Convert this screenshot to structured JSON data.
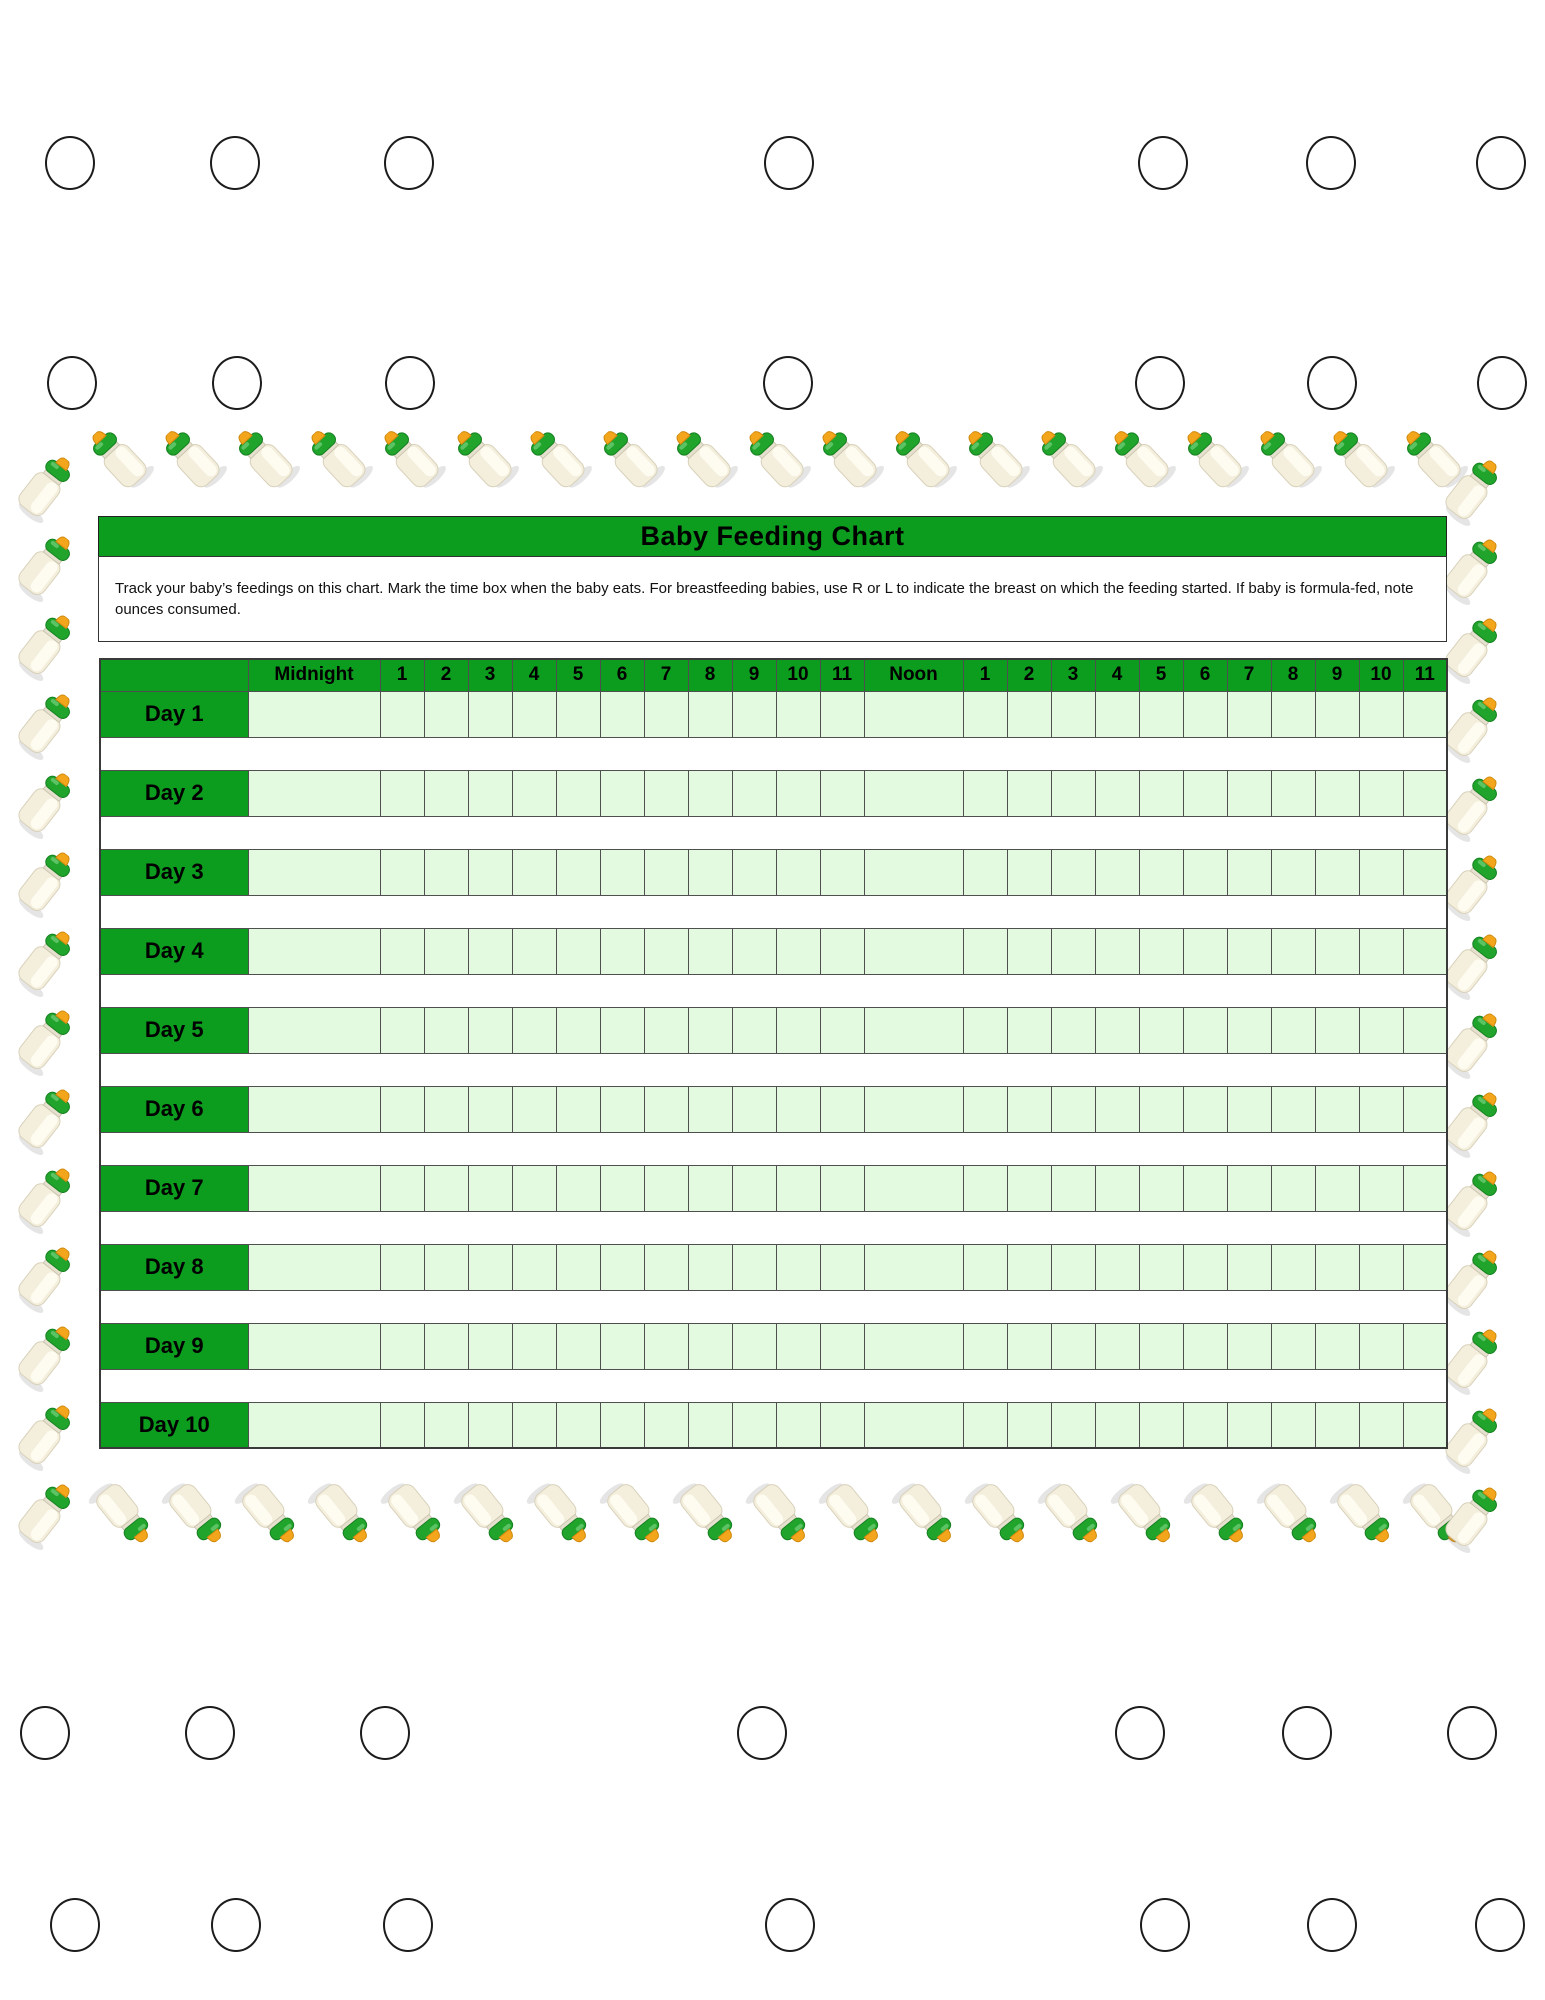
{
  "page": {
    "title": "Baby Feeding Chart",
    "instructions": "Track your baby’s feedings on this chart. Mark the time box when the baby eats. For breastfeeding babies, use R or L to indicate the breast on which the feeding started. If baby is formula-fed, note ounces consumed."
  },
  "table": {
    "corner_label": "",
    "time_headers": [
      "Midnight",
      "1",
      "2",
      "3",
      "4",
      "5",
      "6",
      "7",
      "8",
      "9",
      "10",
      "11",
      "Noon",
      "1",
      "2",
      "3",
      "4",
      "5",
      "6",
      "7",
      "8",
      "9",
      "10",
      "11"
    ],
    "days": [
      "Day 1",
      "Day 2",
      "Day 3",
      "Day 4",
      "Day 5",
      "Day 6",
      "Day 7",
      "Day 8",
      "Day 9",
      "Day 10"
    ],
    "cell_value": ""
  },
  "decor": {
    "border_icon": "baby-bottle-icon",
    "hole_icon": "punch-hole"
  },
  "colors": {
    "header_green": "#0d9d1e",
    "cell_green": "#e4fae0",
    "grid": "#4f4f4f",
    "bottle_cap_green": "#21a42c",
    "bottle_nipple_orange": "#f3a51b",
    "bottle_body_cream": "#f4efdd"
  }
}
